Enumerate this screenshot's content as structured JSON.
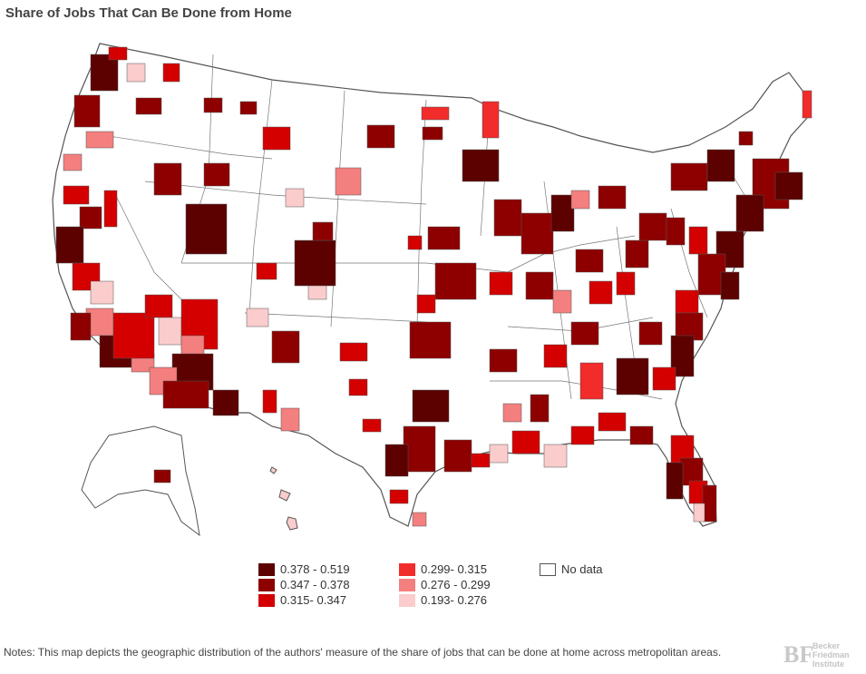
{
  "title": "Share of Jobs That Can Be Done from Home",
  "legend": {
    "items": [
      {
        "label": "0.378 - 0.519",
        "color": "#5c0000"
      },
      {
        "label": "0.347 -  0.378",
        "color": "#8e0000"
      },
      {
        "label": "0.315- 0.347",
        "color": "#d40000"
      },
      {
        "label": "0.299- 0.315",
        "color": "#f22b2b"
      },
      {
        "label": "0.276 - 0.299",
        "color": "#f47f7f"
      },
      {
        "label": "0.193- 0.276",
        "color": "#fbcccc"
      },
      {
        "label": "No data",
        "color": "#ffffff"
      }
    ]
  },
  "notes": "Notes: This map depicts the geographic distribution of the authors' measure of the share of jobs that can be done at home across metropolitan areas.",
  "logo": {
    "mark": "BF",
    "line1": "Becker",
    "line2": "Friedman",
    "line3": "Institute"
  }
}
